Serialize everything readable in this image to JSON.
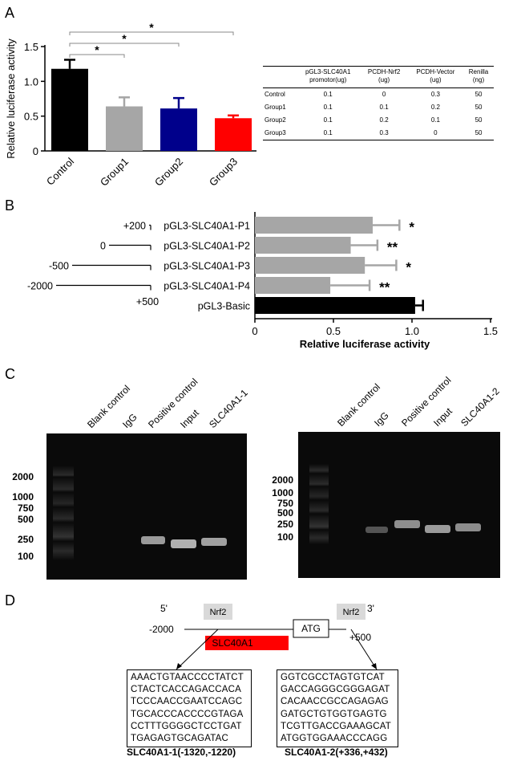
{
  "panels": {
    "a": "A",
    "b": "B",
    "c": "C",
    "d": "D"
  },
  "panel_a": {
    "chart_data": {
      "type": "bar",
      "categories": [
        "Control",
        "Group1",
        "Group2",
        "Group3"
      ],
      "values": [
        1.18,
        0.64,
        0.61,
        0.47
      ],
      "errors": [
        0.13,
        0.13,
        0.15,
        0.04
      ],
      "colors": [
        "#000000",
        "#a6a6a6",
        "#00008b",
        "#ff0000"
      ],
      "ylabel": "Relative luciferase activity",
      "ylim": [
        0,
        1.5
      ],
      "yticks": [
        "0",
        "0.5",
        "1.0",
        "1.5"
      ],
      "significance": [
        {
          "from": "Control",
          "to": "Group1",
          "label": "*"
        },
        {
          "from": "Control",
          "to": "Group2",
          "label": "*"
        },
        {
          "from": "Control",
          "to": "Group3",
          "label": "*"
        }
      ]
    },
    "table": {
      "headers": [
        "",
        "pGL3-SLC40A1\npromotor(ug)",
        "PCDH-Nrf2\n(ug)",
        "PCDH-Vector\n(ug)",
        "Renilla\n(ng)"
      ],
      "rows": [
        [
          "Control",
          "0.1",
          "0",
          "0.3",
          "50"
        ],
        [
          "Group1",
          "0.1",
          "0.1",
          "0.2",
          "50"
        ],
        [
          "Group2",
          "0.1",
          "0.2",
          "0.1",
          "50"
        ],
        [
          "Group3",
          "0.1",
          "0.3",
          "0",
          "50"
        ]
      ]
    }
  },
  "panel_b": {
    "chart_data": {
      "type": "bar",
      "orientation": "horizontal",
      "categories": [
        "pGL3-SLC40A1-P1",
        "pGL3-SLC40A1-P2",
        "pGL3-SLC40A1-P3",
        "pGL3-SLC40A1-P4",
        "pGL3-Basic"
      ],
      "values": [
        0.75,
        0.61,
        0.7,
        0.48,
        1.02
      ],
      "errors": [
        0.17,
        0.17,
        0.2,
        0.25,
        0.05
      ],
      "colors": [
        "#a6a6a6",
        "#a6a6a6",
        "#a6a6a6",
        "#a6a6a6",
        "#000000"
      ],
      "significance": [
        "*",
        "**",
        "*",
        "**",
        ""
      ],
      "xlabel": "Relative luciferase activity",
      "xlim": [
        0,
        1.5
      ],
      "xticks": [
        "0",
        "0.5",
        "1.0",
        "1.5"
      ]
    },
    "constructs": [
      {
        "start": "+200"
      },
      {
        "start": "0"
      },
      {
        "start": "-500"
      },
      {
        "start": "-2000"
      }
    ],
    "end_label": "+500"
  },
  "panel_c": {
    "left": {
      "lanes": [
        "Blank control",
        "IgG",
        "Positive control",
        "Input",
        "SLC40A1-1"
      ],
      "markers": [
        "2000",
        "1000",
        "750",
        "500",
        "250",
        "100"
      ]
    },
    "right": {
      "lanes": [
        "Blank control",
        "IgG",
        "Positive control",
        "Input",
        "SLC40A1-2"
      ],
      "markers": [
        "2000",
        "1000",
        "750",
        "500",
        "250",
        "100"
      ]
    }
  },
  "panel_d": {
    "five_prime": "5'",
    "three_prime": "3'",
    "left_pos": "-2000",
    "right_pos": "+500",
    "nrf2": "Nrf2",
    "atg": "ATG",
    "gene": "SLC40A1",
    "seq1": [
      "AAACTGTAACCCCTATCT",
      "CTACTCACCAGACCACA",
      "TCCCAACCGAATCCAGC",
      "TGCACCCACCCCGTAGA",
      "CCTTTGGGGCTCCTGAT",
      "TGAGAGTGCAGATAC"
    ],
    "seq1_caption": "SLC40A1-1(-1320,-1220)",
    "seq2": [
      "GGTCGCCTAGTGTCAT",
      "GACCAGGGCGGGAGAT",
      "CACAACCGCCAGAGAG",
      "GATGCTGTGGTGAGTG",
      "TCGTTGACCGAAAGCAT",
      "ATGGTGGAAACCCAGG"
    ],
    "seq2_caption": "SLC40A1-2(+336,+432)"
  }
}
